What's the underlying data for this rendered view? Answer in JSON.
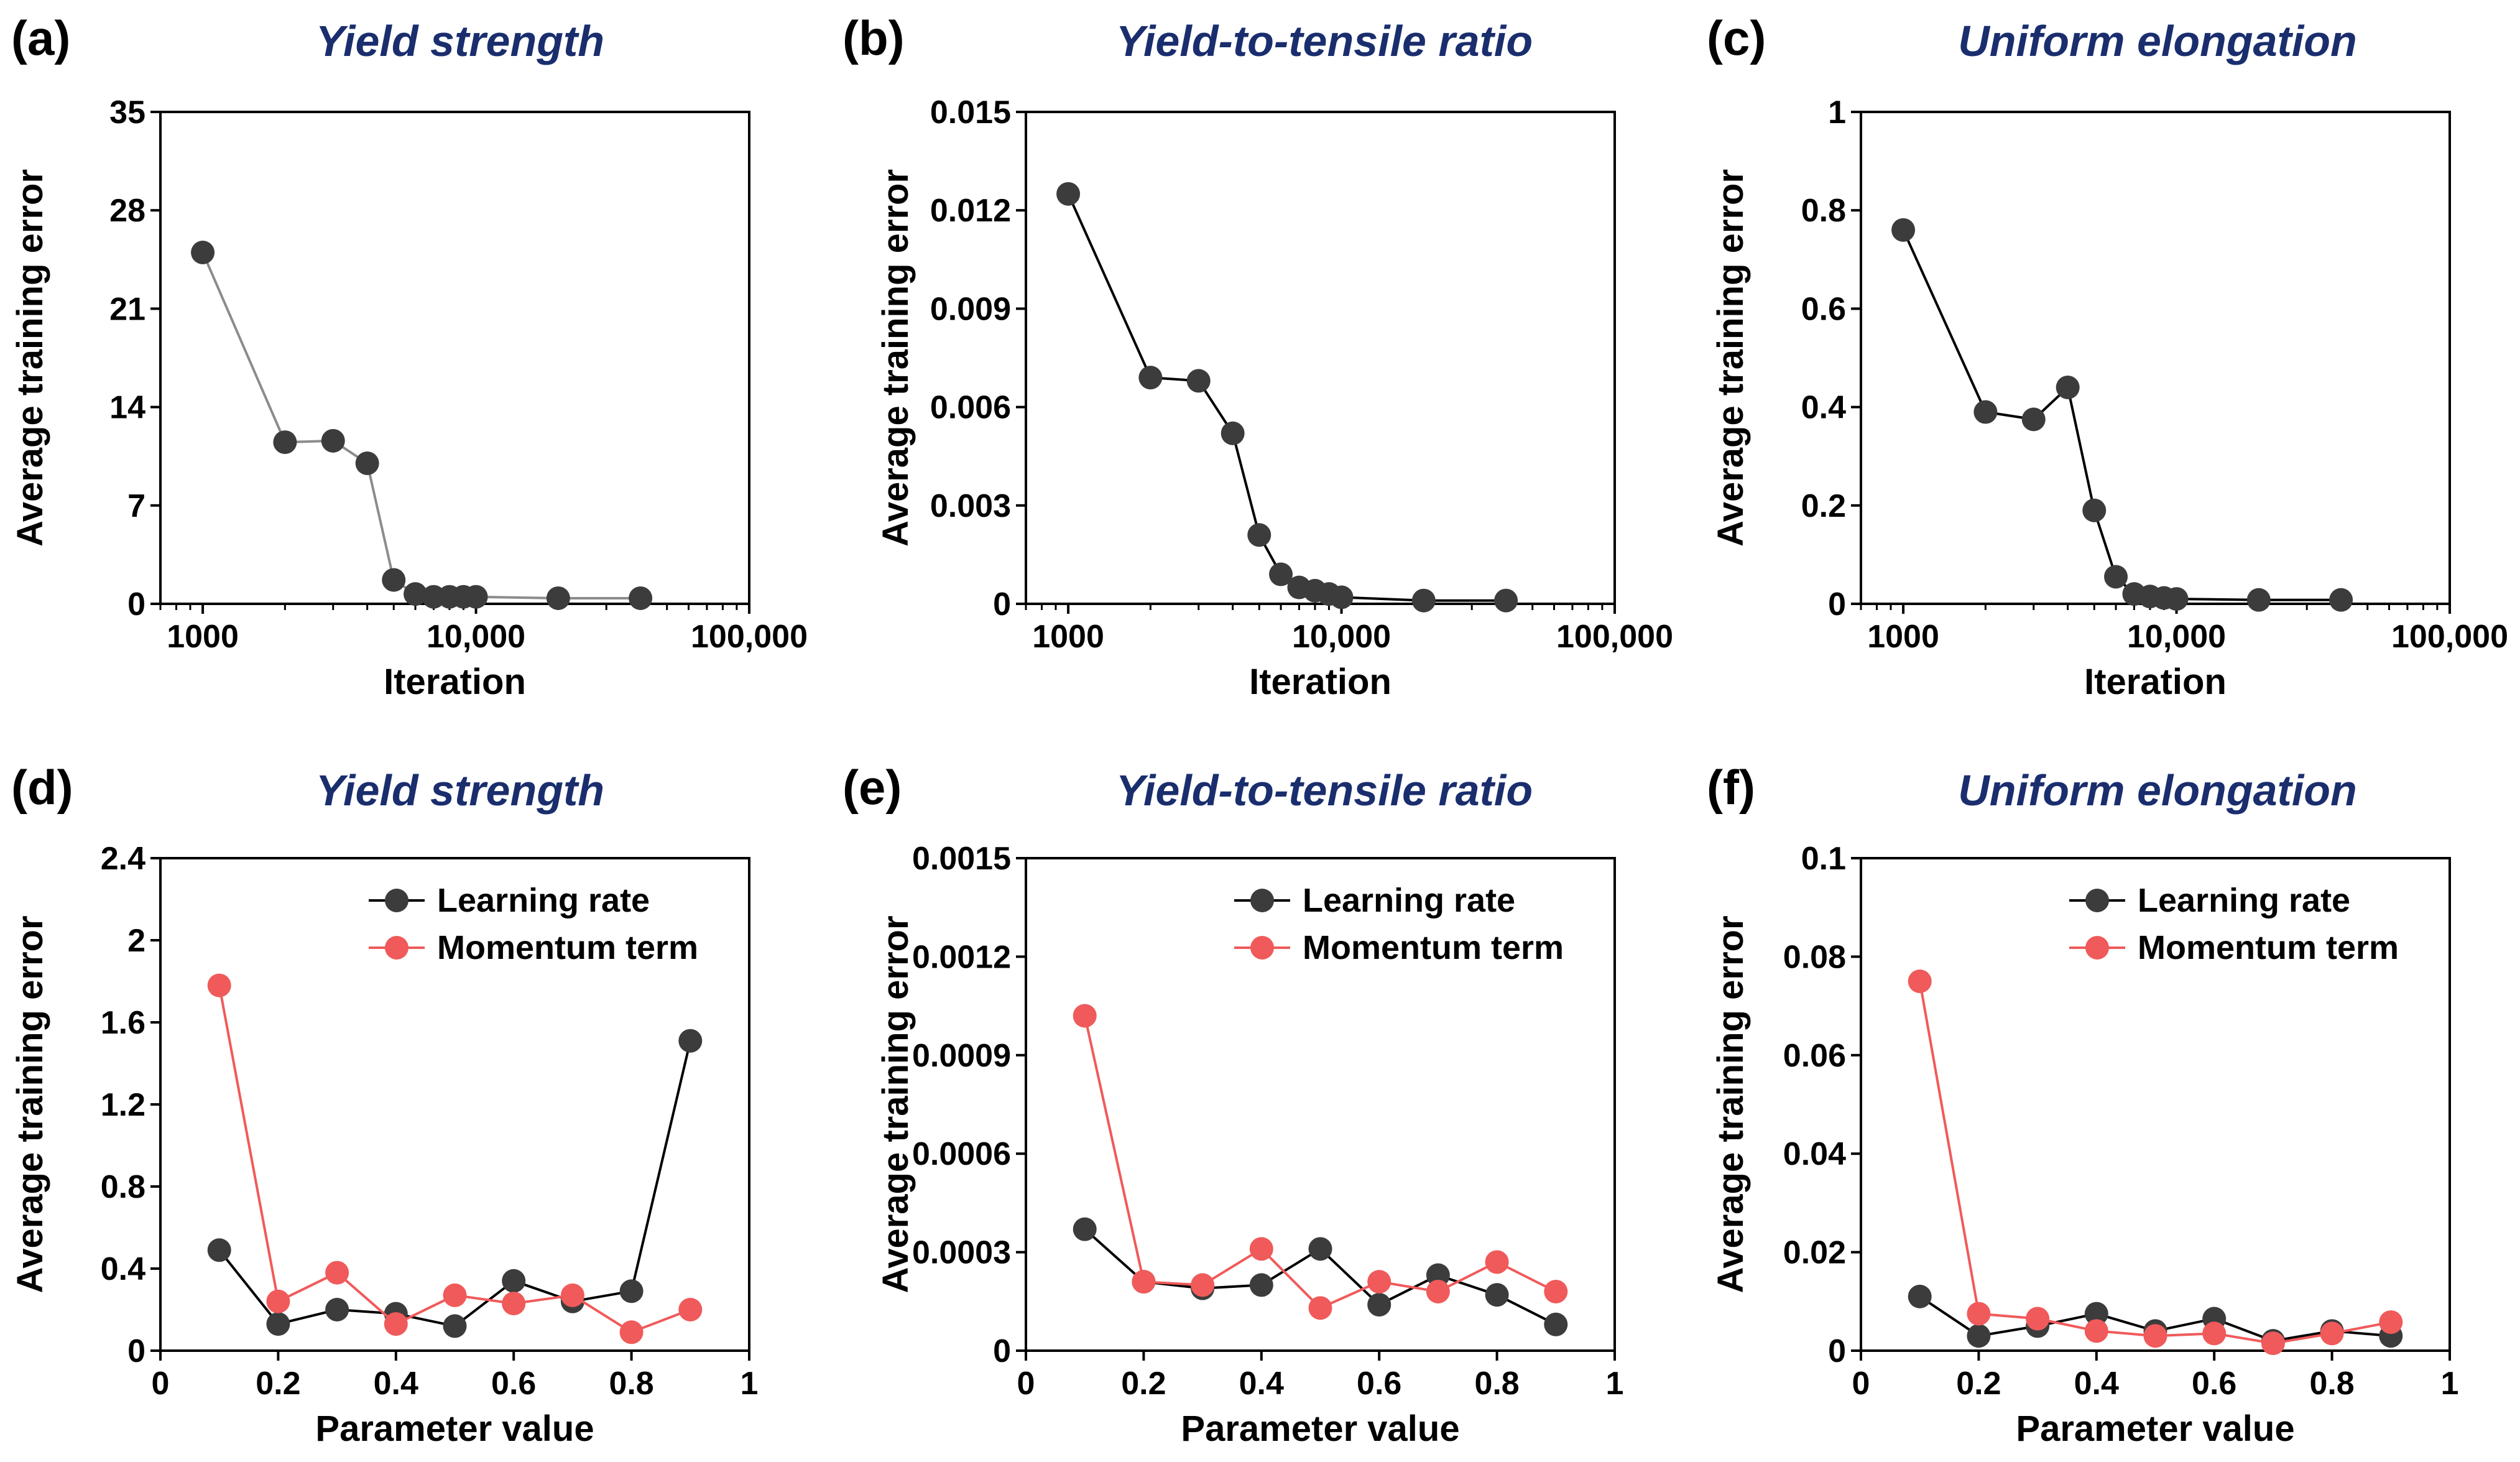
{
  "colors": {
    "title": "#1a2e6e",
    "dark_marker": "#3c3c3c",
    "grey_line": "#8c8c8c",
    "black_line": "#000000",
    "red_marker": "#f05a5a",
    "red_line": "#f05a5a"
  },
  "chart_data": [
    {
      "id": "a",
      "panel_label": "(a)",
      "type": "line",
      "title": "Yield strength",
      "xlabel": "Iteration",
      "ylabel": "Average training error",
      "xscale": "log",
      "xlim": [
        700,
        100000
      ],
      "xticks": [
        1000,
        10000,
        100000
      ],
      "xtick_labels": [
        "1000",
        "10,000",
        "100,000"
      ],
      "ylim": [
        0,
        35
      ],
      "yticks": [
        0,
        7,
        14,
        21,
        28,
        35
      ],
      "ytick_labels": [
        "0",
        "7",
        "14",
        "21",
        "28",
        "35"
      ],
      "series": [
        {
          "name": "Yield strength",
          "line_color_key": "grey_line",
          "marker_color_key": "dark_marker",
          "x": [
            1000,
            2000,
            3000,
            4000,
            5000,
            6000,
            7000,
            8000,
            9000,
            10000,
            20000,
            40000
          ],
          "y": [
            25,
            11.5,
            11.6,
            10.0,
            1.7,
            0.7,
            0.5,
            0.5,
            0.5,
            0.5,
            0.4,
            0.4
          ]
        }
      ]
    },
    {
      "id": "b",
      "panel_label": "(b)",
      "type": "line",
      "title": "Yield-to-tensile ratio",
      "xlabel": "Iteration",
      "ylabel": "Average training error",
      "xscale": "log",
      "xlim": [
        700,
        100000
      ],
      "xticks": [
        1000,
        10000,
        100000
      ],
      "xtick_labels": [
        "1000",
        "10,000",
        "100,000"
      ],
      "ylim": [
        0,
        0.015
      ],
      "yticks": [
        0,
        0.003,
        0.006,
        0.009,
        0.012,
        0.015
      ],
      "ytick_labels": [
        "0",
        "0.003",
        "0.006",
        "0.009",
        "0.012",
        "0.015"
      ],
      "series": [
        {
          "name": "Yield-to-tensile ratio",
          "line_color_key": "black_line",
          "marker_color_key": "dark_marker",
          "x": [
            1000,
            2000,
            3000,
            4000,
            5000,
            6000,
            7000,
            8000,
            9000,
            10000,
            20000,
            40000
          ],
          "y": [
            0.0125,
            0.0069,
            0.0068,
            0.0052,
            0.0021,
            0.0009,
            0.0005,
            0.0004,
            0.0003,
            0.0002,
            0.0001,
            0.0001
          ]
        }
      ]
    },
    {
      "id": "c",
      "panel_label": "(c)",
      "type": "line",
      "title": "Uniform elongation",
      "xlabel": "Iteration",
      "ylabel": "Average training error",
      "xscale": "log",
      "xlim": [
        700,
        100000
      ],
      "xticks": [
        1000,
        10000,
        100000
      ],
      "xtick_labels": [
        "1000",
        "10,000",
        "100,000"
      ],
      "ylim": [
        0,
        1
      ],
      "yticks": [
        0,
        0.2,
        0.4,
        0.6,
        0.8,
        1
      ],
      "ytick_labels": [
        "0",
        "0.2",
        "0.4",
        "0.6",
        "0.8",
        "1"
      ],
      "series": [
        {
          "name": "Uniform elongation",
          "line_color_key": "black_line",
          "marker_color_key": "dark_marker",
          "x": [
            1000,
            2000,
            3000,
            4000,
            5000,
            6000,
            7000,
            8000,
            9000,
            10000,
            20000,
            40000
          ],
          "y": [
            0.76,
            0.39,
            0.375,
            0.44,
            0.19,
            0.055,
            0.02,
            0.015,
            0.012,
            0.01,
            0.008,
            0.008
          ]
        }
      ]
    },
    {
      "id": "d",
      "panel_label": "(d)",
      "type": "line",
      "title": "Yield strength",
      "xlabel": "Parameter value",
      "ylabel": "Average training error",
      "xscale": "linear",
      "xlim": [
        0,
        1
      ],
      "xticks": [
        0,
        0.2,
        0.4,
        0.6,
        0.8,
        1
      ],
      "xtick_labels": [
        "0",
        "0.2",
        "0.4",
        "0.6",
        "0.8",
        "1"
      ],
      "ylim": [
        0,
        2.4
      ],
      "yticks": [
        0,
        0.4,
        0.8,
        1.2,
        1.6,
        2,
        2.4
      ],
      "ytick_labels": [
        "0",
        "0.4",
        "0.8",
        "1.2",
        "1.6",
        "2",
        "2.4"
      ],
      "legend": "top-right",
      "series": [
        {
          "name": "Learning rate",
          "line_color_key": "black_line",
          "marker_color_key": "dark_marker",
          "x": [
            0.1,
            0.2,
            0.3,
            0.4,
            0.5,
            0.6,
            0.7,
            0.8,
            0.9
          ],
          "y": [
            0.49,
            0.13,
            0.2,
            0.18,
            0.12,
            0.34,
            0.24,
            0.29,
            1.51
          ]
        },
        {
          "name": "Momentum term",
          "line_color_key": "red_line",
          "marker_color_key": "red_marker",
          "x": [
            0.1,
            0.2,
            0.3,
            0.4,
            0.5,
            0.6,
            0.7,
            0.8,
            0.9
          ],
          "y": [
            1.78,
            0.24,
            0.38,
            0.13,
            0.27,
            0.23,
            0.27,
            0.09,
            0.2
          ]
        }
      ]
    },
    {
      "id": "e",
      "panel_label": "(e)",
      "type": "line",
      "title": "Yield-to-tensile ratio",
      "xlabel": "Parameter value",
      "ylabel": "Average training error",
      "xscale": "linear",
      "xlim": [
        0,
        1
      ],
      "xticks": [
        0,
        0.2,
        0.4,
        0.6,
        0.8,
        1
      ],
      "xtick_labels": [
        "0",
        "0.2",
        "0.4",
        "0.6",
        "0.8",
        "1"
      ],
      "ylim": [
        0,
        0.0015
      ],
      "yticks": [
        0,
        0.0003,
        0.0006,
        0.0009,
        0.0012,
        0.0015
      ],
      "ytick_labels": [
        "0",
        "0.0003",
        "0.0006",
        "0.0009",
        "0.0012",
        "0.0015"
      ],
      "legend": "top-right",
      "series": [
        {
          "name": "Learning rate",
          "line_color_key": "black_line",
          "marker_color_key": "dark_marker",
          "x": [
            0.1,
            0.2,
            0.3,
            0.4,
            0.5,
            0.6,
            0.7,
            0.8,
            0.9
          ],
          "y": [
            0.00037,
            0.00021,
            0.00019,
            0.0002,
            0.00031,
            0.00014,
            0.00023,
            0.00017,
            8e-05
          ]
        },
        {
          "name": "Momentum term",
          "line_color_key": "red_line",
          "marker_color_key": "red_marker",
          "x": [
            0.1,
            0.2,
            0.3,
            0.4,
            0.5,
            0.6,
            0.7,
            0.8,
            0.9
          ],
          "y": [
            0.00102,
            0.00021,
            0.0002,
            0.00031,
            0.00013,
            0.00021,
            0.00018,
            0.00027,
            0.00018
          ]
        }
      ]
    },
    {
      "id": "f",
      "panel_label": "(f)",
      "type": "line",
      "title": "Uniform elongation",
      "xlabel": "Parameter value",
      "ylabel": "Average training error",
      "xscale": "linear",
      "xlim": [
        0,
        1
      ],
      "xticks": [
        0,
        0.2,
        0.4,
        0.6,
        0.8,
        1
      ],
      "xtick_labels": [
        "0",
        "0.2",
        "0.4",
        "0.6",
        "0.8",
        "1"
      ],
      "ylim": [
        0,
        0.1
      ],
      "yticks": [
        0,
        0.02,
        0.04,
        0.06,
        0.08,
        0.1
      ],
      "ytick_labels": [
        "0",
        "0.02",
        "0.04",
        "0.06",
        "0.08",
        "0.1"
      ],
      "legend": "top-right",
      "series": [
        {
          "name": "Learning rate",
          "line_color_key": "black_line",
          "marker_color_key": "dark_marker",
          "x": [
            0.1,
            0.2,
            0.3,
            0.4,
            0.5,
            0.6,
            0.7,
            0.8,
            0.9
          ],
          "y": [
            0.011,
            0.003,
            0.005,
            0.0075,
            0.004,
            0.0065,
            0.002,
            0.004,
            0.003
          ]
        },
        {
          "name": "Momentum term",
          "line_color_key": "red_line",
          "marker_color_key": "red_marker",
          "x": [
            0.1,
            0.2,
            0.3,
            0.4,
            0.5,
            0.6,
            0.7,
            0.8,
            0.9
          ],
          "y": [
            0.075,
            0.0075,
            0.0065,
            0.004,
            0.003,
            0.0035,
            0.0015,
            0.0035,
            0.0058
          ]
        }
      ]
    }
  ]
}
